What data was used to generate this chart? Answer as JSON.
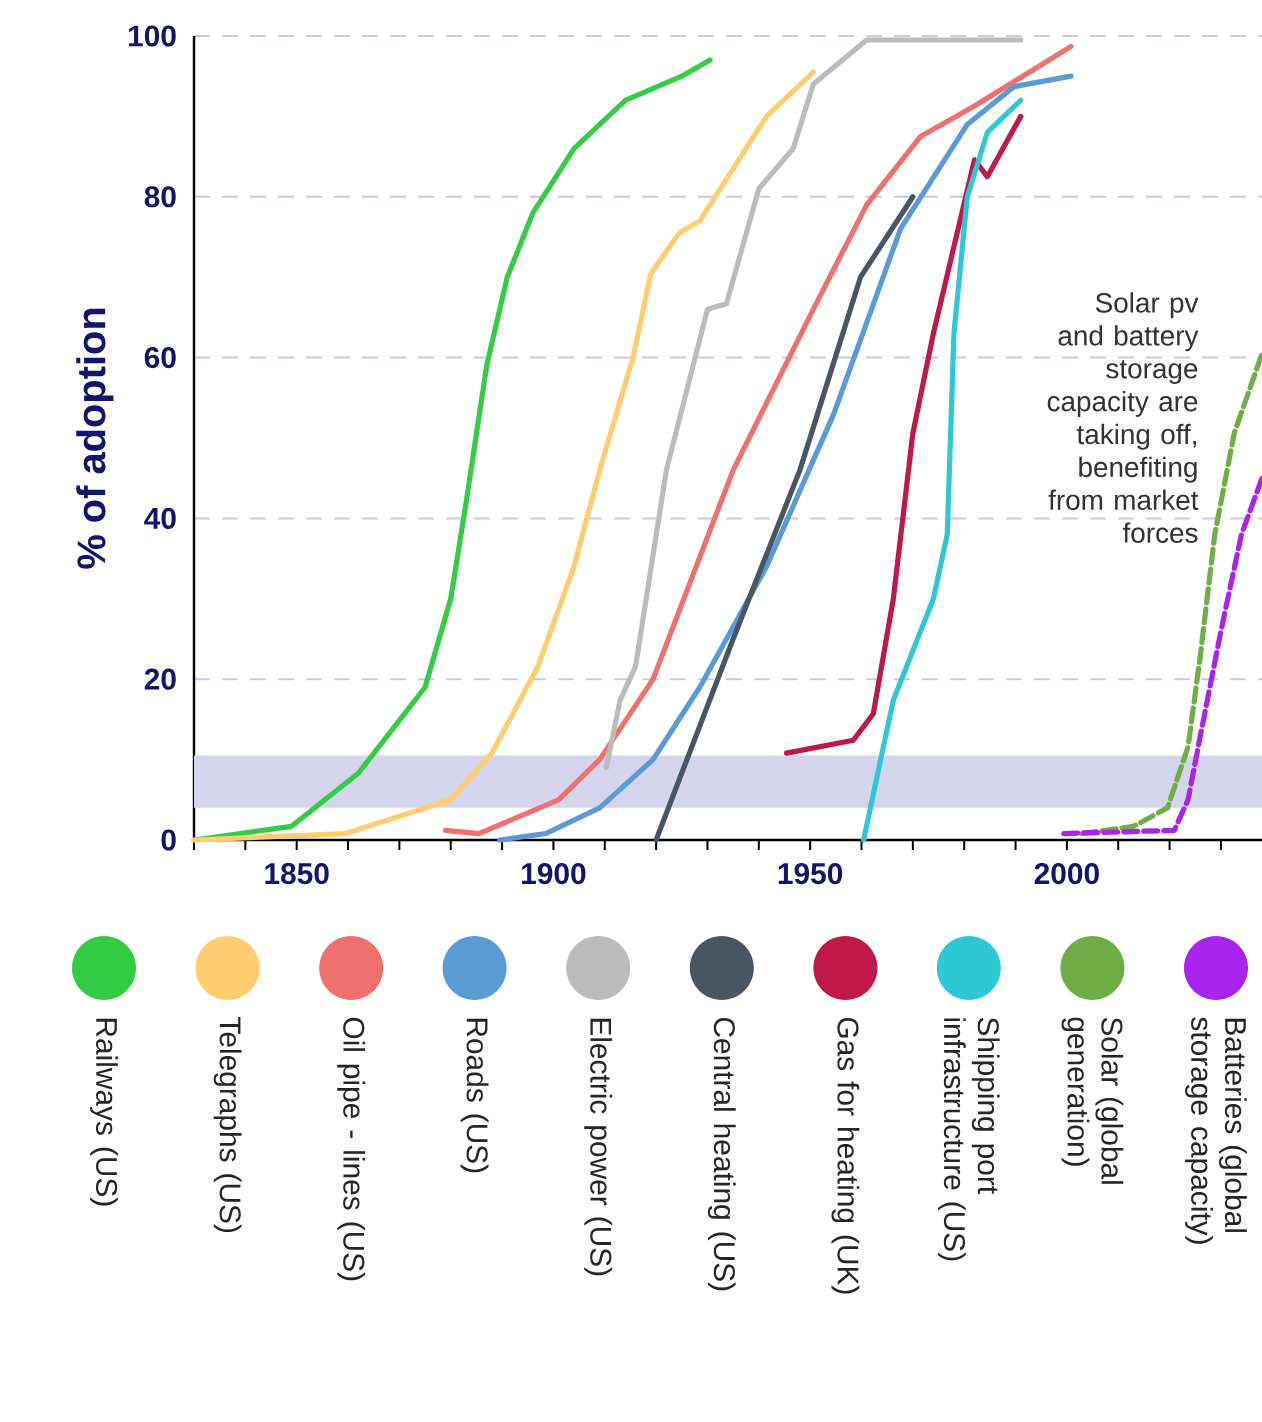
{
  "chart_data": {
    "type": "line",
    "ylabel": "% of adoption",
    "xlim": [
      1830,
      2038
    ],
    "ylim": [
      0,
      100
    ],
    "xticks": [
      {
        "value": 1830,
        "label": null
      },
      {
        "value": 1840,
        "label": null
      },
      1850,
      {
        "value": 1860,
        "label": null
      },
      {
        "value": 1870,
        "label": null
      },
      {
        "value": 1880,
        "label": null
      },
      {
        "value": 1890,
        "label": null
      },
      1900,
      {
        "value": 1910,
        "label": null
      },
      {
        "value": 1920,
        "label": null
      },
      {
        "value": 1930,
        "label": null
      },
      {
        "value": 1940,
        "label": null
      },
      1950,
      {
        "value": 1960,
        "label": null
      },
      {
        "value": 1970,
        "label": null
      },
      {
        "value": 1980,
        "label": null
      },
      {
        "value": 1990,
        "label": null
      },
      2000,
      {
        "value": 2010,
        "label": null
      },
      {
        "value": 2020,
        "label": null
      },
      {
        "value": 2030,
        "label": null
      }
    ],
    "yticks": [
      0,
      20,
      40,
      60,
      80,
      100
    ],
    "grid": "y",
    "legend": "bottom",
    "line_style": "solid",
    "bands": [
      {
        "axis": "y",
        "from": 4,
        "to": 10.5,
        "color": "#d4d4ec"
      }
    ],
    "annotations": [
      "Solar pv and battery storage capacity are taking off, benefiting from market forces"
    ],
    "series": [
      {
        "name": "Railways (US)",
        "color": "#33cc44",
        "x": [
          1830,
          1849,
          1862,
          1875,
          1880,
          1883,
          1887,
          1891,
          1896,
          1904,
          1914,
          1925,
          1930.5
        ],
        "values": [
          0,
          1.7,
          8.3,
          19,
          30,
          42,
          59,
          70,
          78,
          86,
          92,
          95,
          97
        ]
      },
      {
        "name": "Telegraphs (US)",
        "color": "#ffcc70",
        "x": [
          1830,
          1859.5,
          1880,
          1888,
          1897,
          1904,
          1909,
          1915.5,
          1919,
          1924.5,
          1928.5,
          1941.5,
          1950.6
        ],
        "values": [
          0,
          0.8,
          5,
          10.8,
          21.6,
          34,
          46,
          60,
          70.5,
          75.5,
          77,
          90,
          95.5
        ]
      },
      {
        "name": "Oil pipe - lines (US)",
        "color": "#f07070",
        "x": [
          1879,
          1885.5,
          1901,
          1909,
          1919.4,
          1935,
          1950.6,
          1961,
          1971.5,
          1982,
          2000.8
        ],
        "values": [
          1.2,
          0.8,
          5,
          10,
          20,
          46,
          66,
          79,
          87.5,
          91.3,
          98.7
        ]
      },
      {
        "name": "Roads (US)",
        "color": "#5b9bd5",
        "x": [
          1889.5,
          1898.5,
          1909,
          1919.4,
          1928.5,
          1941.5,
          1954.6,
          1967.6,
          1980.6,
          1989.7,
          2000.8
        ],
        "values": [
          0,
          0.8,
          4,
          10,
          19,
          34,
          53,
          76,
          89,
          93.7,
          95
        ]
      },
      {
        "name": "Electric power (US)",
        "color": "#bbbbbb",
        "x": [
          1910.3,
          1913,
          1916,
          1922,
          1930,
          1933.7,
          1940,
          1946.7,
          1950.6,
          1961,
          1991
        ],
        "values": [
          9,
          17.4,
          21.6,
          46,
          66,
          66.7,
          81,
          86,
          94,
          99.5,
          99.5
        ]
      },
      {
        "name": "Central heating (US)",
        "color": "#4a5563",
        "x": [
          1920,
          1935,
          1948,
          1959.8,
          1970
        ],
        "values": [
          0,
          25,
          46,
          70,
          80
        ]
      },
      {
        "name": "Gas for heating (UK)",
        "color": "#c0184a",
        "x": [
          1945.4,
          1958.4,
          1962.3,
          1966.2,
          1970,
          1974,
          1982,
          1984.5,
          1991
        ],
        "values": [
          10.8,
          12.4,
          15.7,
          30,
          50.6,
          63,
          84.6,
          82.5,
          90
        ]
      },
      {
        "name": "Shipping port infrastructure (US)",
        "color": "#2ec8d4",
        "x": [
          1960.4,
          1966.2,
          1974,
          1976.7,
          1978,
          1980.6,
          1984.5,
          1991
        ],
        "values": [
          0,
          17.4,
          30,
          38,
          63,
          80,
          88,
          92
        ]
      },
      {
        "name": "Solar (global generation)",
        "color": "#70ad47",
        "line_style": "dashed",
        "x": [
          2003,
          2013,
          2019.6,
          2023.6,
          2026,
          2028.8,
          2032.6,
          2038
        ],
        "values": [
          0.8,
          1.7,
          4,
          11.6,
          23,
          38,
          50.6,
          60.5
        ]
      },
      {
        "name": "Batteries (global storage capacity)",
        "color": "#aa22ee",
        "line_style": "dashed",
        "x": [
          1999.4,
          2020.9,
          2023.6,
          2026,
          2030,
          2034,
          2038
        ],
        "values": [
          0.8,
          1.2,
          5,
          13,
          26,
          38,
          45
        ]
      }
    ]
  }
}
